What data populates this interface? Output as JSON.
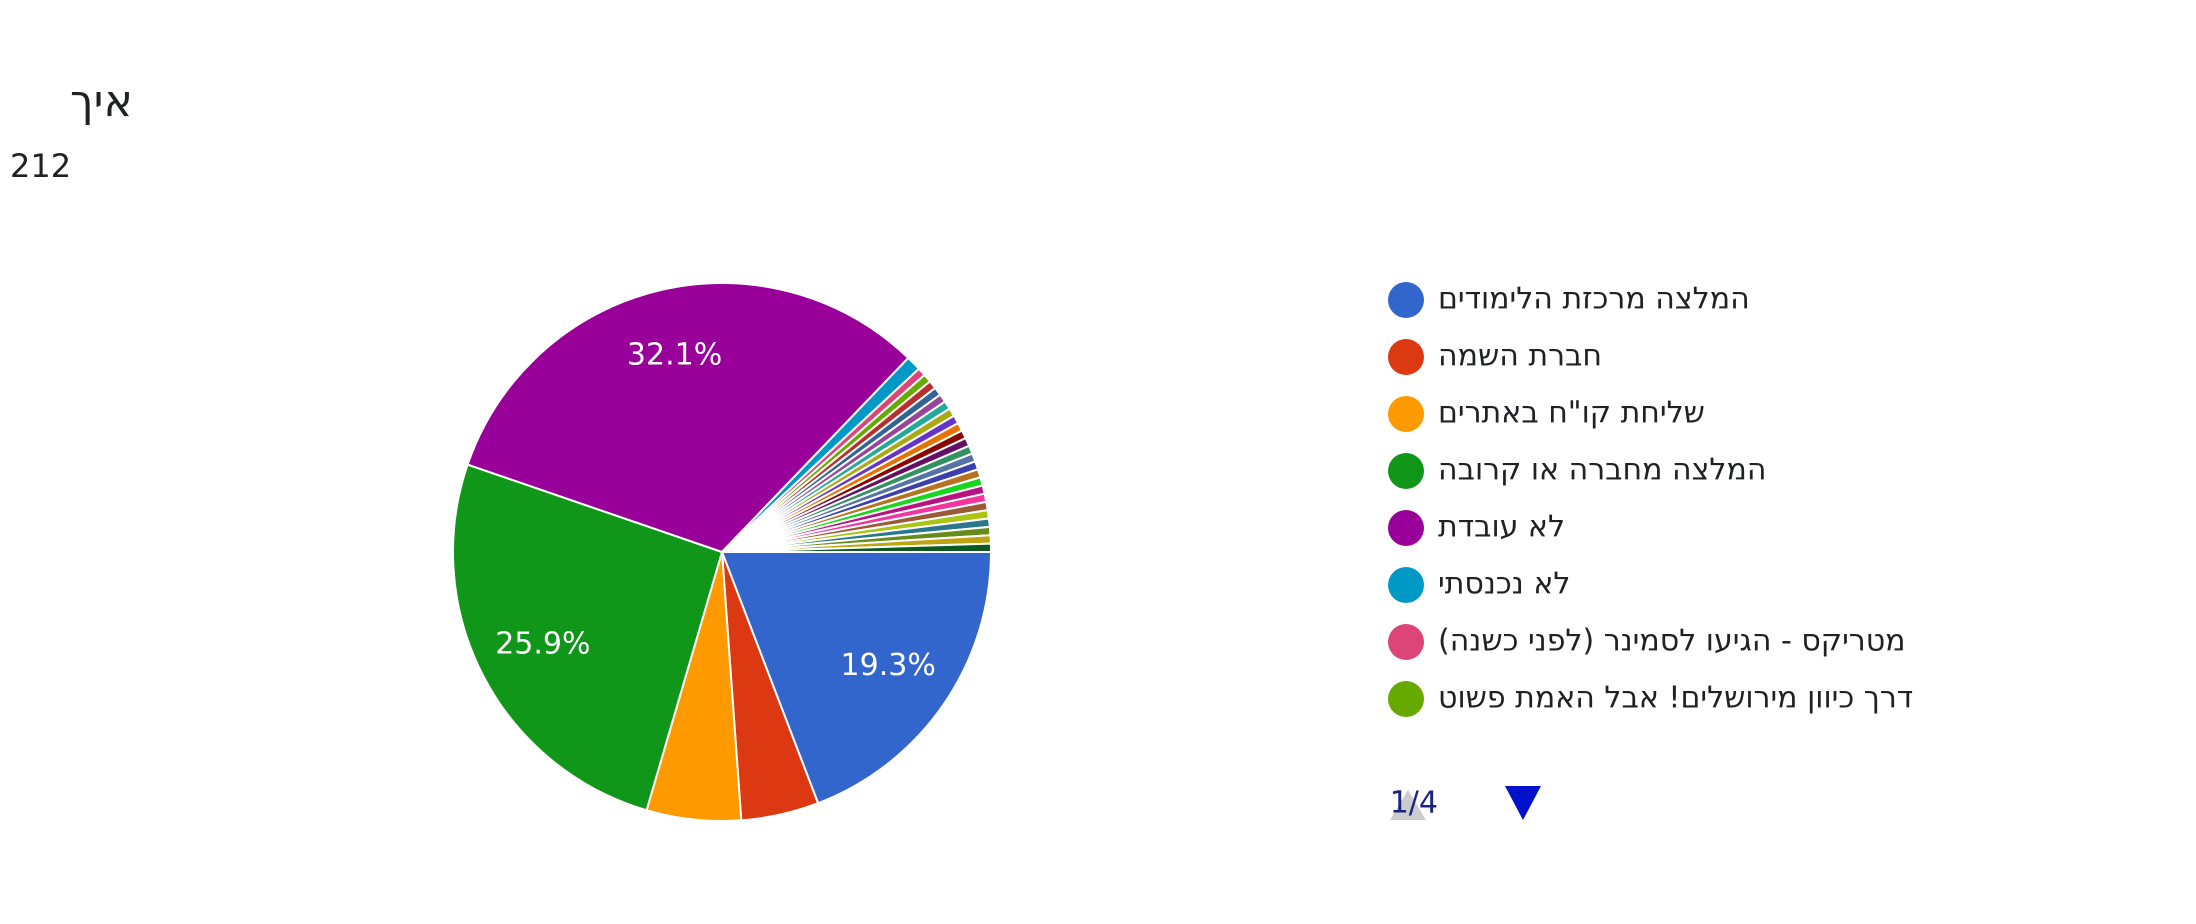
{
  "chart_data": {
    "type": "pie",
    "title": "איך",
    "subtitle": "212",
    "categories": [
      "המלצה מרכזת הלימודים",
      "חברת השמה",
      "שליחת קו\"ח באתרים",
      "המלצה מחברה או קרובה",
      "לא עובדת",
      "לא נכנסתי",
      "מטריקס - הגיעו לסמינר (לפני כשנה)",
      "דרך כיוון מירושלים! אבל האמת פשוט",
      null,
      null,
      null,
      null,
      null,
      null,
      null,
      null,
      null,
      null,
      null,
      null,
      null,
      null,
      null,
      null,
      null,
      null,
      null,
      null,
      null,
      null
    ],
    "values": [
      19.3,
      4.7,
      5.7,
      25.9,
      32.1,
      0.9,
      0.5,
      0.5,
      0.5,
      0.5,
      0.5,
      0.5,
      0.5,
      0.5,
      0.5,
      0.5,
      0.5,
      0.5,
      0.5,
      0.5,
      0.5,
      0.5,
      0.5,
      0.5,
      0.5,
      0.5,
      0.5,
      0.5,
      0.5,
      0.5
    ],
    "value_labels": [
      "19.3%",
      null,
      null,
      "25.9%",
      "32.1%",
      null,
      null,
      null,
      null,
      null,
      null,
      null,
      null,
      null,
      null,
      null,
      null,
      null,
      null,
      null,
      null,
      null,
      null,
      null,
      null,
      null,
      null,
      null,
      null,
      null
    ],
    "colors": [
      "#3366cc",
      "#dc3912",
      "#ff9900",
      "#109618",
      "#990099",
      "#0099c6",
      "#dd4477",
      "#66aa00",
      "#b82e2e",
      "#316395",
      "#994499",
      "#22aa99",
      "#aaaa11",
      "#6633cc",
      "#e67300",
      "#8b0707",
      "#651067",
      "#329262",
      "#5574a6",
      "#3b3eac",
      "#b77322",
      "#16d620",
      "#b91383",
      "#f4359e",
      "#9c5935",
      "#a9c413",
      "#2a778d",
      "#668d1c",
      "#bea413",
      "#0c5922"
    ],
    "legend_page": "1/4"
  }
}
